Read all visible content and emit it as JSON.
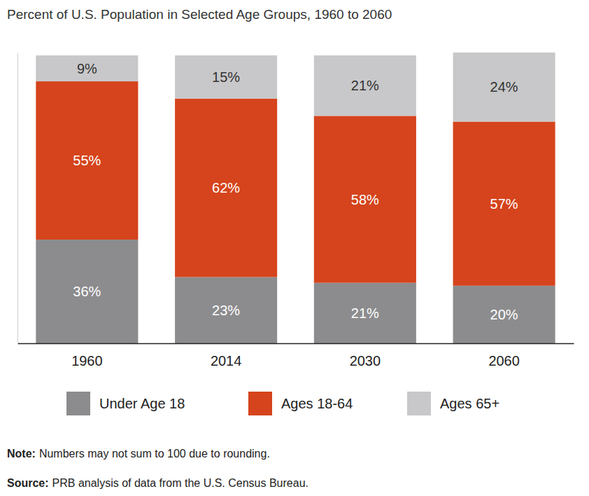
{
  "chart_data": {
    "type": "bar",
    "stacked": true,
    "data_labels": true,
    "tick_labels": "x",
    "grid": false,
    "title": "Percent of U.S. Population in Selected Age Groups, 1960 to 2060",
    "categories": [
      "1960",
      "2014",
      "2030",
      "2060"
    ],
    "ylim": [
      0,
      101
    ],
    "yticks": [],
    "series": [
      {
        "name": "Under Age 18",
        "color": "#8c8c8e",
        "values": [
          36,
          23,
          21,
          20
        ],
        "value_labels": [
          "36%",
          "23%",
          "21%",
          "20%"
        ]
      },
      {
        "name": "Ages 18-64",
        "color": "#d5441c",
        "values": [
          55,
          62,
          58,
          57
        ],
        "value_labels": [
          "55%",
          "62%",
          "58%",
          "57%"
        ]
      },
      {
        "name": "Ages 65+",
        "color": "#c8c8ca",
        "values": [
          9,
          15,
          21,
          24
        ],
        "value_labels": [
          "9%",
          "15%",
          "21%",
          "24%"
        ]
      }
    ],
    "notes": [
      {
        "label": "Note:",
        "text": "Numbers may not sum to 100 due to rounding."
      },
      {
        "label": "Source:",
        "text": "PRB analysis of data from the U.S. Census Bureau."
      }
    ]
  }
}
